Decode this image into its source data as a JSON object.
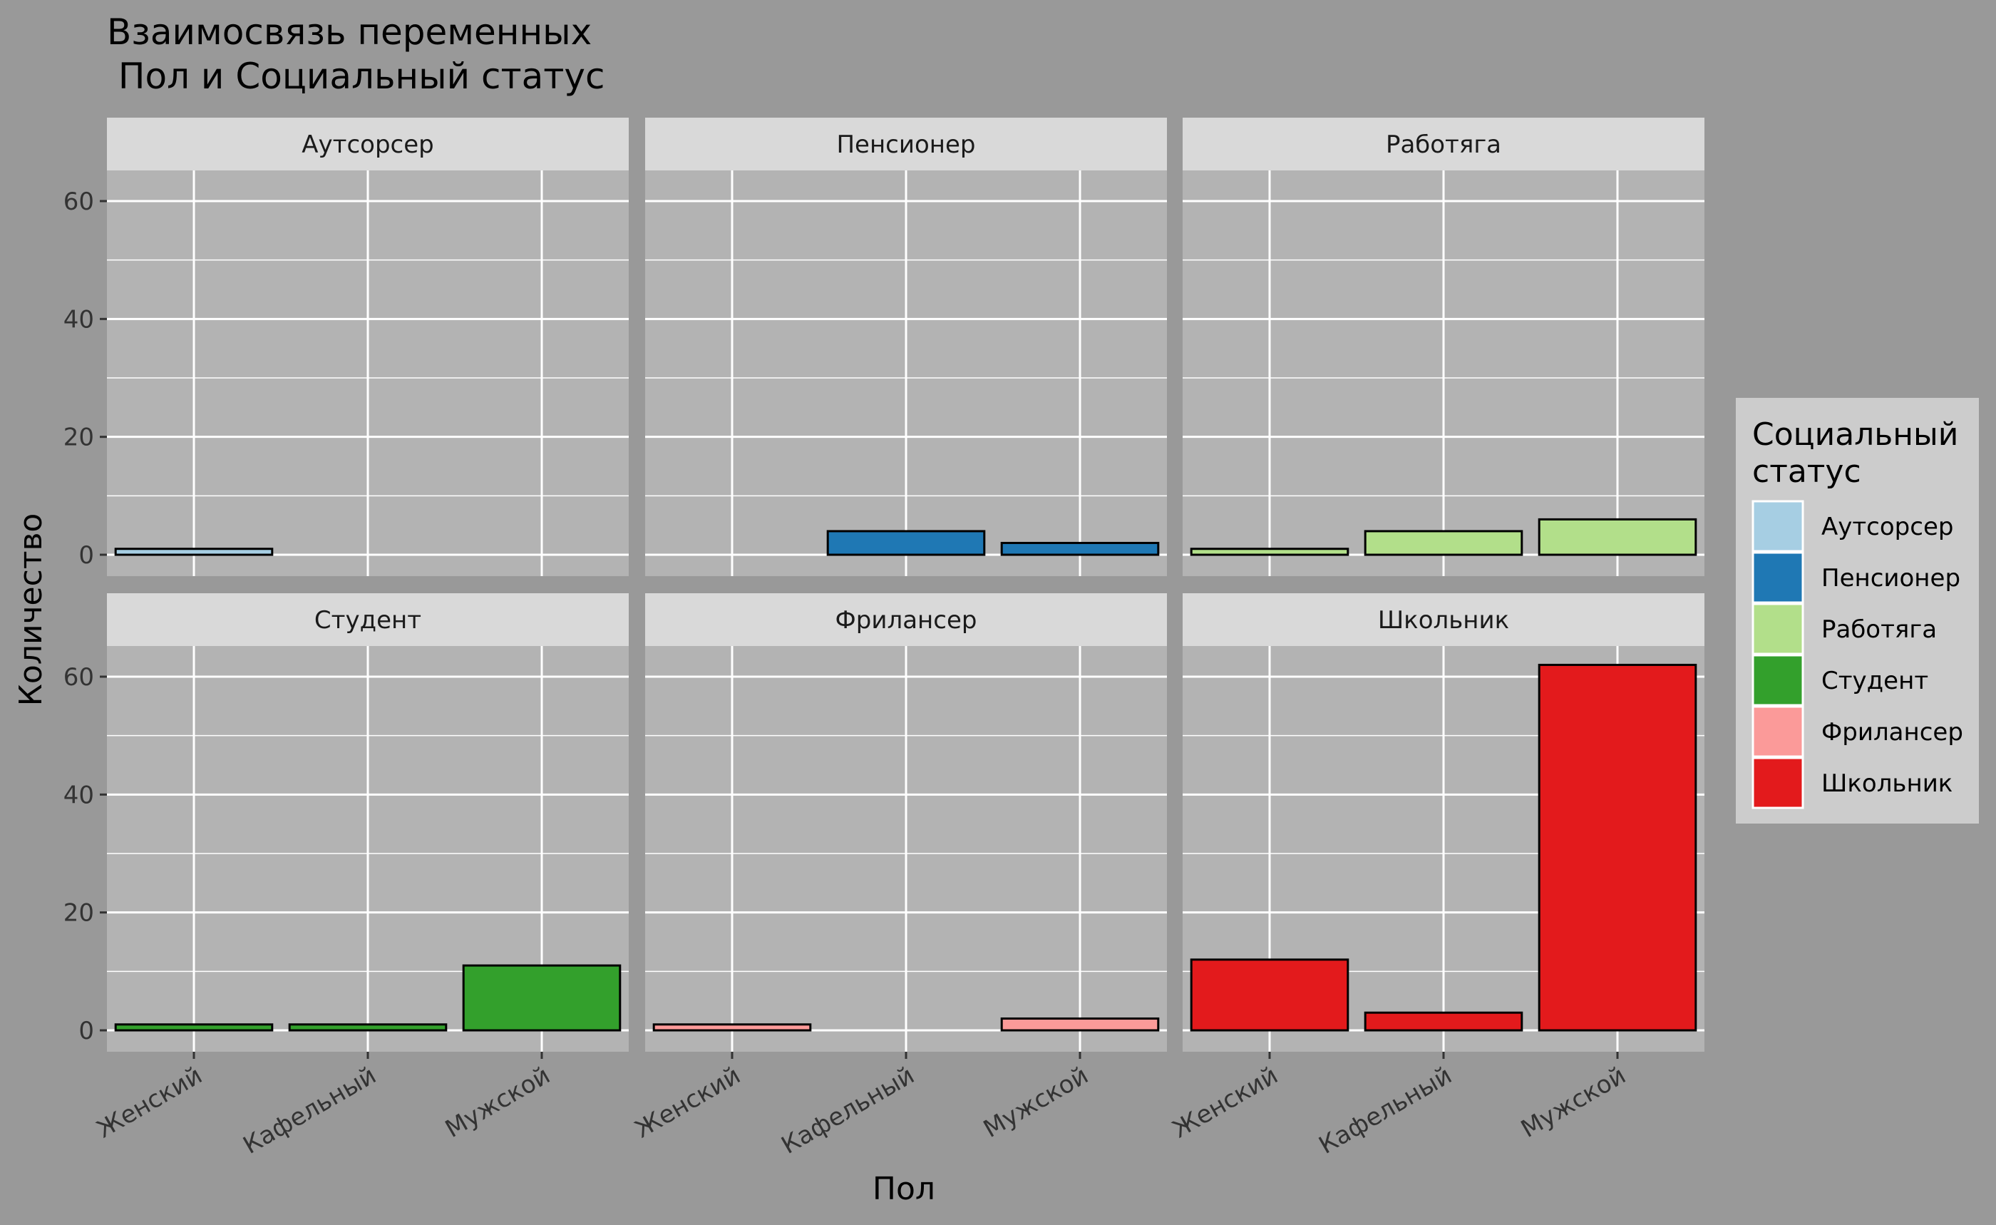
{
  "chart_data": {
    "type": "bar",
    "title": "Взаимосвязь переменных\n Пол и Социальный статус",
    "xlabel": "Пол",
    "ylabel": "Количество",
    "categories": [
      "Женский",
      "Кафельный",
      "Мужской"
    ],
    "ylim": [
      0,
      65
    ],
    "yticks": [
      0,
      20,
      40,
      60
    ],
    "grid": true,
    "facets": [
      {
        "name": "Аутсорсер",
        "color": "#A6CEE3",
        "values": [
          1,
          null,
          null
        ]
      },
      {
        "name": "Пенсионер",
        "color": "#1F78B4",
        "values": [
          null,
          4,
          2
        ]
      },
      {
        "name": "Работяга",
        "color": "#B2DF8A",
        "values": [
          1,
          4,
          6
        ]
      },
      {
        "name": "Студент",
        "color": "#33A02C",
        "values": [
          1,
          1,
          11
        ]
      },
      {
        "name": "Фрилансер",
        "color": "#FB9A99",
        "values": [
          1,
          null,
          2
        ]
      },
      {
        "name": "Школьник",
        "color": "#E31A1C",
        "values": [
          12,
          3,
          62
        ]
      }
    ],
    "legend": {
      "title_lines": [
        "Социальный",
        "статус"
      ],
      "position": "right"
    }
  },
  "colors": {
    "background": "#999999",
    "panel": "#B3B3B3",
    "strip": "#D9D9D9",
    "grid": "#FFFFFF",
    "legend_bg": "#CCCCCC",
    "bar_outline": "#000000"
  }
}
